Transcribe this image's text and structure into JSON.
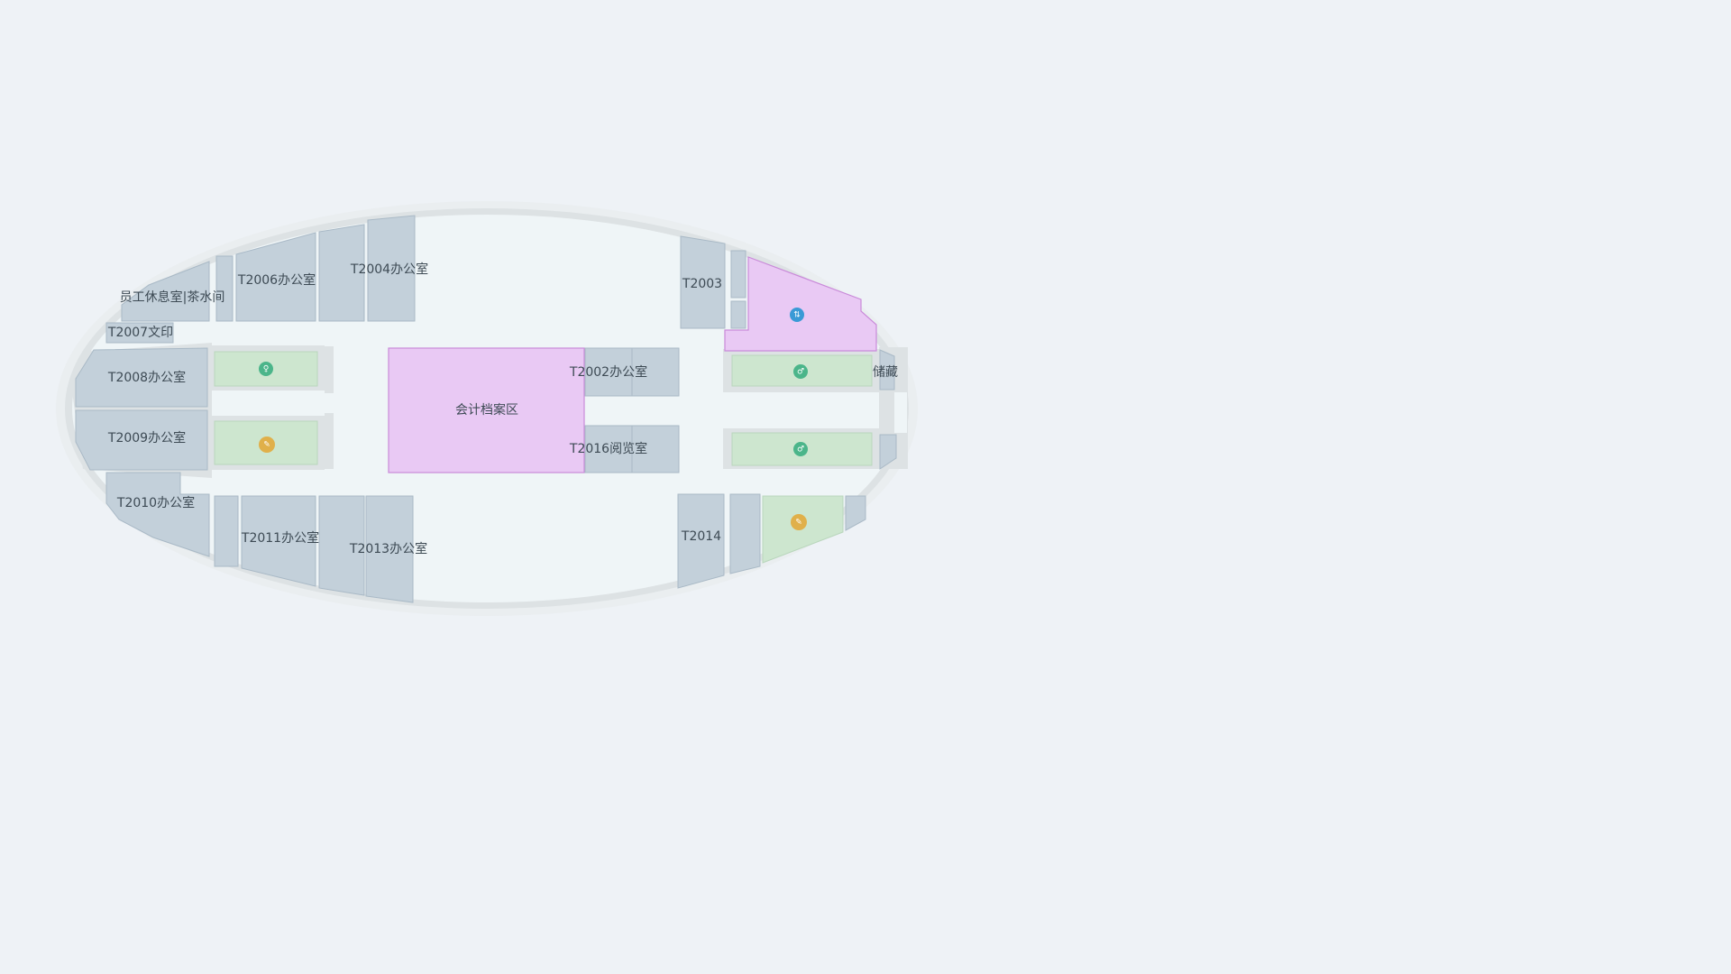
{
  "map": {
    "colors": {
      "background": "#eef2f6",
      "corridor": "#eff5f7",
      "wall": "#dde2e4",
      "office": "#c3d0da",
      "highlight": "#e9c9f4",
      "restroom": "#cde6cf"
    },
    "rooms": {
      "staff_lounge": "员工休息室|茶水间",
      "t2006": "T2006办公室",
      "t2004": "T2004办公室",
      "t2003": "T2003",
      "t2007": "T2007文印",
      "t2008": "T2008办公室",
      "t2009": "T2009办公室",
      "t2010": "T2010办公室",
      "t2011": "T2011办公室",
      "t2013": "T2013办公室",
      "t2014": "T2014",
      "accounting_archive": "会计档案区",
      "t2002": "T2002办公室",
      "t2016": "T2016阅览室",
      "storage": "储藏"
    },
    "icons": {
      "restroom_female": "female-restroom-icon",
      "restroom_male": "male-restroom-icon",
      "restroom_right_top": "restroom-icon",
      "restroom_right_mid": "restroom-icon",
      "maintenance_left": "wrench-icon",
      "maintenance_right": "wrench-icon",
      "stairs": "stairs-icon"
    }
  }
}
